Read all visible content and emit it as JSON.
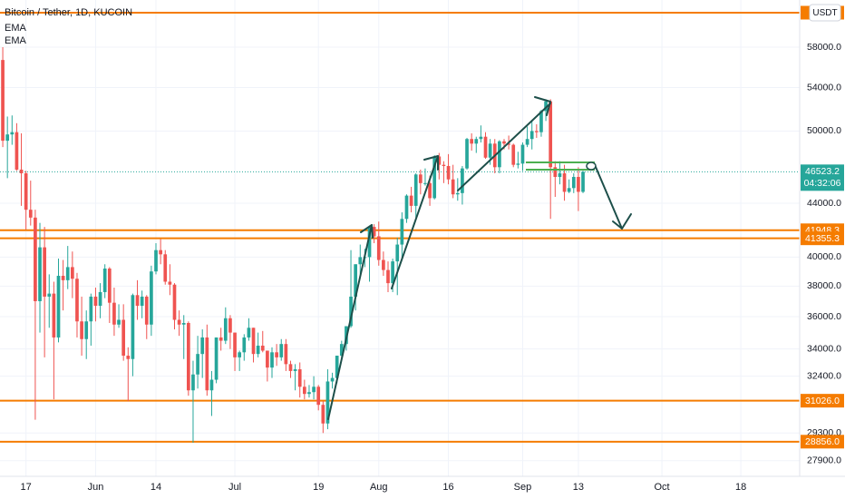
{
  "chart_data": {
    "type": "candlestick",
    "title": "Bitcoin / Tether, 1D, KUCOIN",
    "indicators": [
      "EMA",
      "EMA"
    ],
    "currency": "USDT",
    "log_scale": true,
    "grid": true,
    "up_color": "#26a69a",
    "down_color": "#ef5350",
    "level_color": "#f57c00",
    "categories": [
      null,
      null,
      null,
      null,
      null,
      "17",
      null,
      null,
      null,
      null,
      null,
      null,
      null,
      null,
      null,
      null,
      null,
      null,
      null,
      null,
      "Jun",
      null,
      null,
      null,
      null,
      null,
      null,
      null,
      null,
      null,
      null,
      null,
      null,
      "14",
      null,
      null,
      null,
      null,
      null,
      null,
      null,
      null,
      null,
      null,
      null,
      null,
      null,
      null,
      null,
      null,
      "Jul",
      null,
      null,
      null,
      null,
      null,
      null,
      null,
      null,
      null,
      null,
      null,
      null,
      null,
      null,
      null,
      null,
      null,
      "19",
      null,
      null,
      null,
      null,
      null,
      null,
      null,
      null,
      null,
      null,
      null,
      null,
      "Aug",
      null,
      null,
      null,
      null,
      null,
      null,
      null,
      null,
      null,
      null,
      null,
      null,
      null,
      null,
      "16",
      null,
      null,
      null,
      null,
      null,
      null,
      null,
      null,
      null,
      null,
      null,
      null,
      null,
      null,
      null,
      "Sep",
      null,
      null,
      null,
      null,
      null,
      null,
      null,
      null,
      null,
      null,
      null,
      "13",
      null,
      null,
      null,
      null,
      null,
      null,
      null,
      null,
      null,
      null,
      null,
      null,
      null,
      null,
      null,
      null,
      null,
      "Oct",
      null,
      null,
      null,
      null,
      null,
      null,
      null,
      null,
      null,
      null,
      null,
      null,
      null,
      null,
      null,
      null,
      "18",
      null,
      null,
      null,
      null,
      null,
      null,
      null
    ],
    "open": [
      56700,
      49150,
      49700,
      49900,
      46700,
      46400,
      43500,
      42900,
      37000,
      40700,
      37300,
      37500,
      34700,
      38700,
      38400,
      39300,
      38500,
      35700,
      34600,
      35700,
      37300,
      36700,
      37600,
      39200,
      36900,
      35500,
      35800,
      33600,
      33400,
      37400,
      36700,
      37300,
      35500,
      39000,
      40500,
      40200,
      38300,
      38100,
      35800,
      35500,
      35600,
      31600,
      32500,
      33700,
      34700,
      31600,
      32200,
      34700,
      34500,
      35900,
      35000,
      33500,
      33800,
      34700,
      35300,
      33700,
      34200,
      33900,
      32900,
      33800,
      33500,
      34300,
      33100,
      32700,
      32800,
      31800,
      31400,
      31500,
      31800,
      30800,
      29800,
      32100,
      32300,
      33600,
      34300,
      35400,
      37300,
      39500,
      40000,
      40000,
      42200,
      41500,
      39800,
      39100,
      38200,
      39700,
      40900,
      42800,
      44600,
      43800,
      46300,
      45600,
      45600,
      44400,
      47800,
      47100,
      47000,
      45900,
      44700,
      44800,
      46800,
      49300,
      48900,
      49300,
      49500,
      47700,
      48900,
      46900,
      49100,
      48900,
      48800,
      47100,
      47200,
      48800,
      49300,
      50000,
      49900,
      51800,
      52700,
      46900,
      46100,
      46400,
      44900,
      45200,
      46100,
      44900,
      null,
      null,
      null,
      null,
      null,
      null,
      null,
      null,
      null,
      null,
      null,
      null,
      null,
      null,
      null,
      null,
      null,
      null,
      null,
      null,
      null,
      null,
      null,
      null,
      null,
      null,
      null,
      null,
      null,
      null,
      null,
      null,
      null,
      null,
      null,
      null,
      null,
      null,
      null,
      null,
      null
    ],
    "high": [
      58000,
      51300,
      51400,
      50700,
      49800,
      46600,
      45800,
      43500,
      42500,
      42200,
      38800,
      38300,
      39900,
      39800,
      40800,
      40400,
      38900,
      37300,
      36400,
      37500,
      37900,
      38200,
      39500,
      39300,
      37900,
      36800,
      36800,
      34100,
      37500,
      38400,
      37700,
      37400,
      39400,
      41000,
      41300,
      40500,
      39500,
      38200,
      36400,
      36100,
      35700,
      33300,
      34800,
      35200,
      35500,
      32700,
      34700,
      35300,
      36600,
      36100,
      35000,
      33900,
      34900,
      35900,
      35300,
      35000,
      35100,
      33900,
      34100,
      34300,
      34600,
      34600,
      33300,
      33100,
      33200,
      32200,
      31900,
      32400,
      31900,
      31000,
      32800,
      32600,
      33600,
      34500,
      35400,
      40500,
      39500,
      40900,
      40600,
      42300,
      42400,
      42600,
      40400,
      39700,
      39900,
      41400,
      43300,
      44700,
      45300,
      46400,
      46700,
      46800,
      46200,
      47900,
      48100,
      47400,
      48000,
      47100,
      46000,
      47000,
      49400,
      49800,
      49500,
      50500,
      49900,
      49300,
      49300,
      49200,
      49300,
      49600,
      48900,
      48200,
      49000,
      50400,
      51000,
      50600,
      51900,
      52900,
      52900,
      47400,
      47400,
      47100,
      45900,
      46400,
      46900,
      46600,
      null,
      null,
      null,
      null,
      null,
      null,
      null,
      null,
      null,
      null,
      null,
      null,
      null,
      null,
      null,
      null,
      null,
      null,
      null,
      null,
      null,
      null,
      null,
      null,
      null,
      null,
      null,
      null,
      null,
      null,
      null,
      null,
      null,
      null,
      null,
      null,
      null,
      null,
      null,
      null,
      null
    ],
    "low": [
      48600,
      46000,
      48800,
      46600,
      43800,
      42000,
      42300,
      30000,
      35000,
      33500,
      35300,
      31100,
      34400,
      36400,
      37800,
      37200,
      34700,
      33600,
      33400,
      34200,
      35700,
      35900,
      37200,
      35600,
      34800,
      35300,
      33300,
      31000,
      32400,
      35800,
      35900,
      34600,
      34800,
      38800,
      39500,
      38100,
      37400,
      35200,
      34800,
      33400,
      31300,
      28800,
      31700,
      32300,
      31300,
      30200,
      32000,
      33900,
      34300,
      34000,
      32700,
      32700,
      33300,
      34500,
      33200,
      33500,
      33800,
      32100,
      32300,
      33000,
      33300,
      32700,
      32300,
      31600,
      31200,
      31100,
      31200,
      31100,
      30500,
      29300,
      29500,
      31700,
      32000,
      33400,
      33900,
      35300,
      36400,
      38800,
      39300,
      38300,
      41000,
      39400,
      38700,
      37600,
      37600,
      37400,
      39900,
      42500,
      43300,
      42900,
      44700,
      45400,
      43800,
      44300,
      45900,
      45600,
      45500,
      44400,
      44200,
      43900,
      46700,
      48300,
      48100,
      49000,
      47600,
      47100,
      46400,
      46400,
      48400,
      48400,
      46900,
      46800,
      46600,
      48600,
      48400,
      49400,
      49500,
      50900,
      42800,
      44500,
      45500,
      44200,
      44800,
      44800,
      43400,
      44800,
      null,
      null,
      null,
      null,
      null,
      null,
      null,
      null,
      null,
      null,
      null,
      null,
      null,
      null,
      null,
      null,
      null,
      null,
      null,
      null,
      null,
      null,
      null,
      null,
      null,
      null,
      null,
      null,
      null,
      null,
      null,
      null,
      null,
      null,
      null,
      null,
      null,
      null,
      null,
      null,
      null
    ],
    "close": [
      49150,
      49700,
      49900,
      46700,
      46400,
      43500,
      42900,
      37000,
      40700,
      37300,
      37500,
      34700,
      38700,
      38400,
      39300,
      38500,
      35700,
      34600,
      35700,
      37300,
      36700,
      37600,
      39200,
      36900,
      35500,
      35800,
      33600,
      33400,
      37400,
      36700,
      37300,
      35500,
      39000,
      40500,
      40200,
      38300,
      38100,
      35800,
      35500,
      35600,
      31600,
      32500,
      33700,
      34700,
      31600,
      32200,
      34700,
      34500,
      35900,
      35000,
      33500,
      33800,
      34700,
      35300,
      33700,
      34200,
      33900,
      32900,
      33800,
      33500,
      34300,
      33100,
      32700,
      32800,
      31800,
      31400,
      31500,
      31800,
      30800,
      29800,
      32100,
      32300,
      33600,
      34300,
      35400,
      37300,
      39500,
      40000,
      40000,
      42200,
      41500,
      39800,
      39100,
      38200,
      39700,
      40900,
      42800,
      44600,
      43800,
      46300,
      45600,
      45600,
      44400,
      47800,
      47100,
      47000,
      45900,
      44700,
      44800,
      46800,
      49300,
      48900,
      49300,
      49500,
      47700,
      48900,
      46900,
      49100,
      48900,
      48800,
      47100,
      47200,
      48800,
      49300,
      50000,
      49900,
      51800,
      52700,
      46900,
      46100,
      46400,
      44900,
      45200,
      46100,
      44900,
      46523.2,
      null,
      null,
      null,
      null,
      null,
      null,
      null,
      null,
      null,
      null,
      null,
      null,
      null,
      null,
      null,
      null,
      null,
      null,
      null,
      null,
      null,
      null,
      null,
      null,
      null,
      null,
      null,
      null,
      null,
      null,
      null,
      null,
      null,
      null,
      null,
      null,
      null,
      null,
      null,
      null,
      null
    ],
    "ylim": [
      27140,
      63050
    ],
    "yticks": [
      {
        "value": 58000,
        "label": "58000.0"
      },
      {
        "value": 54000,
        "label": "54000.0"
      },
      {
        "value": 50000,
        "label": "50000.0"
      },
      {
        "value": 44000,
        "label": "44000.0"
      },
      {
        "value": 40000,
        "label": "40000.0"
      },
      {
        "value": 38000,
        "label": "38000.0"
      },
      {
        "value": 36000,
        "label": "36000.0"
      },
      {
        "value": 34000,
        "label": "34000.0"
      },
      {
        "value": 32400,
        "label": "32400.0"
      },
      {
        "value": 29300,
        "label": "29300.0"
      },
      {
        "value": 27900,
        "label": "27900.0"
      }
    ],
    "levels": [
      61650,
      41948.3,
      41355.3,
      {
        "value": 31026,
        "label": "31026.0"
      },
      {
        "value": 28856,
        "label": "28856.0"
      }
    ],
    "last_price": 46523.2,
    "countdown": "04:32:06"
  }
}
